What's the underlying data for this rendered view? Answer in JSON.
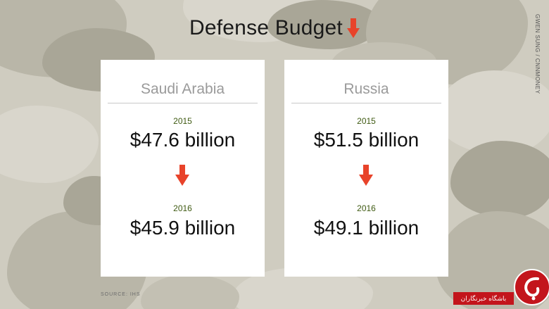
{
  "title": "Defense Budget",
  "credit": "GWEN SUNG / CNNMONEY",
  "source": "SOURCE: IHS",
  "cards": [
    {
      "country": "Saudi Arabia",
      "year1": "2015",
      "amount1": "$47.6 billion",
      "year2": "2016",
      "amount2": "$45.9 billion"
    },
    {
      "country": "Russia",
      "year1": "2015",
      "amount1": "$51.5 billion",
      "year2": "2016",
      "amount2": "$49.1 billion"
    }
  ],
  "logo_text": "باشگاه خبرنگاران",
  "icons": [
    "down-arrow-icon",
    "logo-mark-icon"
  ],
  "colors": {
    "arrow": "#e8432a",
    "year": "#3f5a12",
    "logo_red": "#c3151c",
    "card_bg": "#ffffff"
  }
}
